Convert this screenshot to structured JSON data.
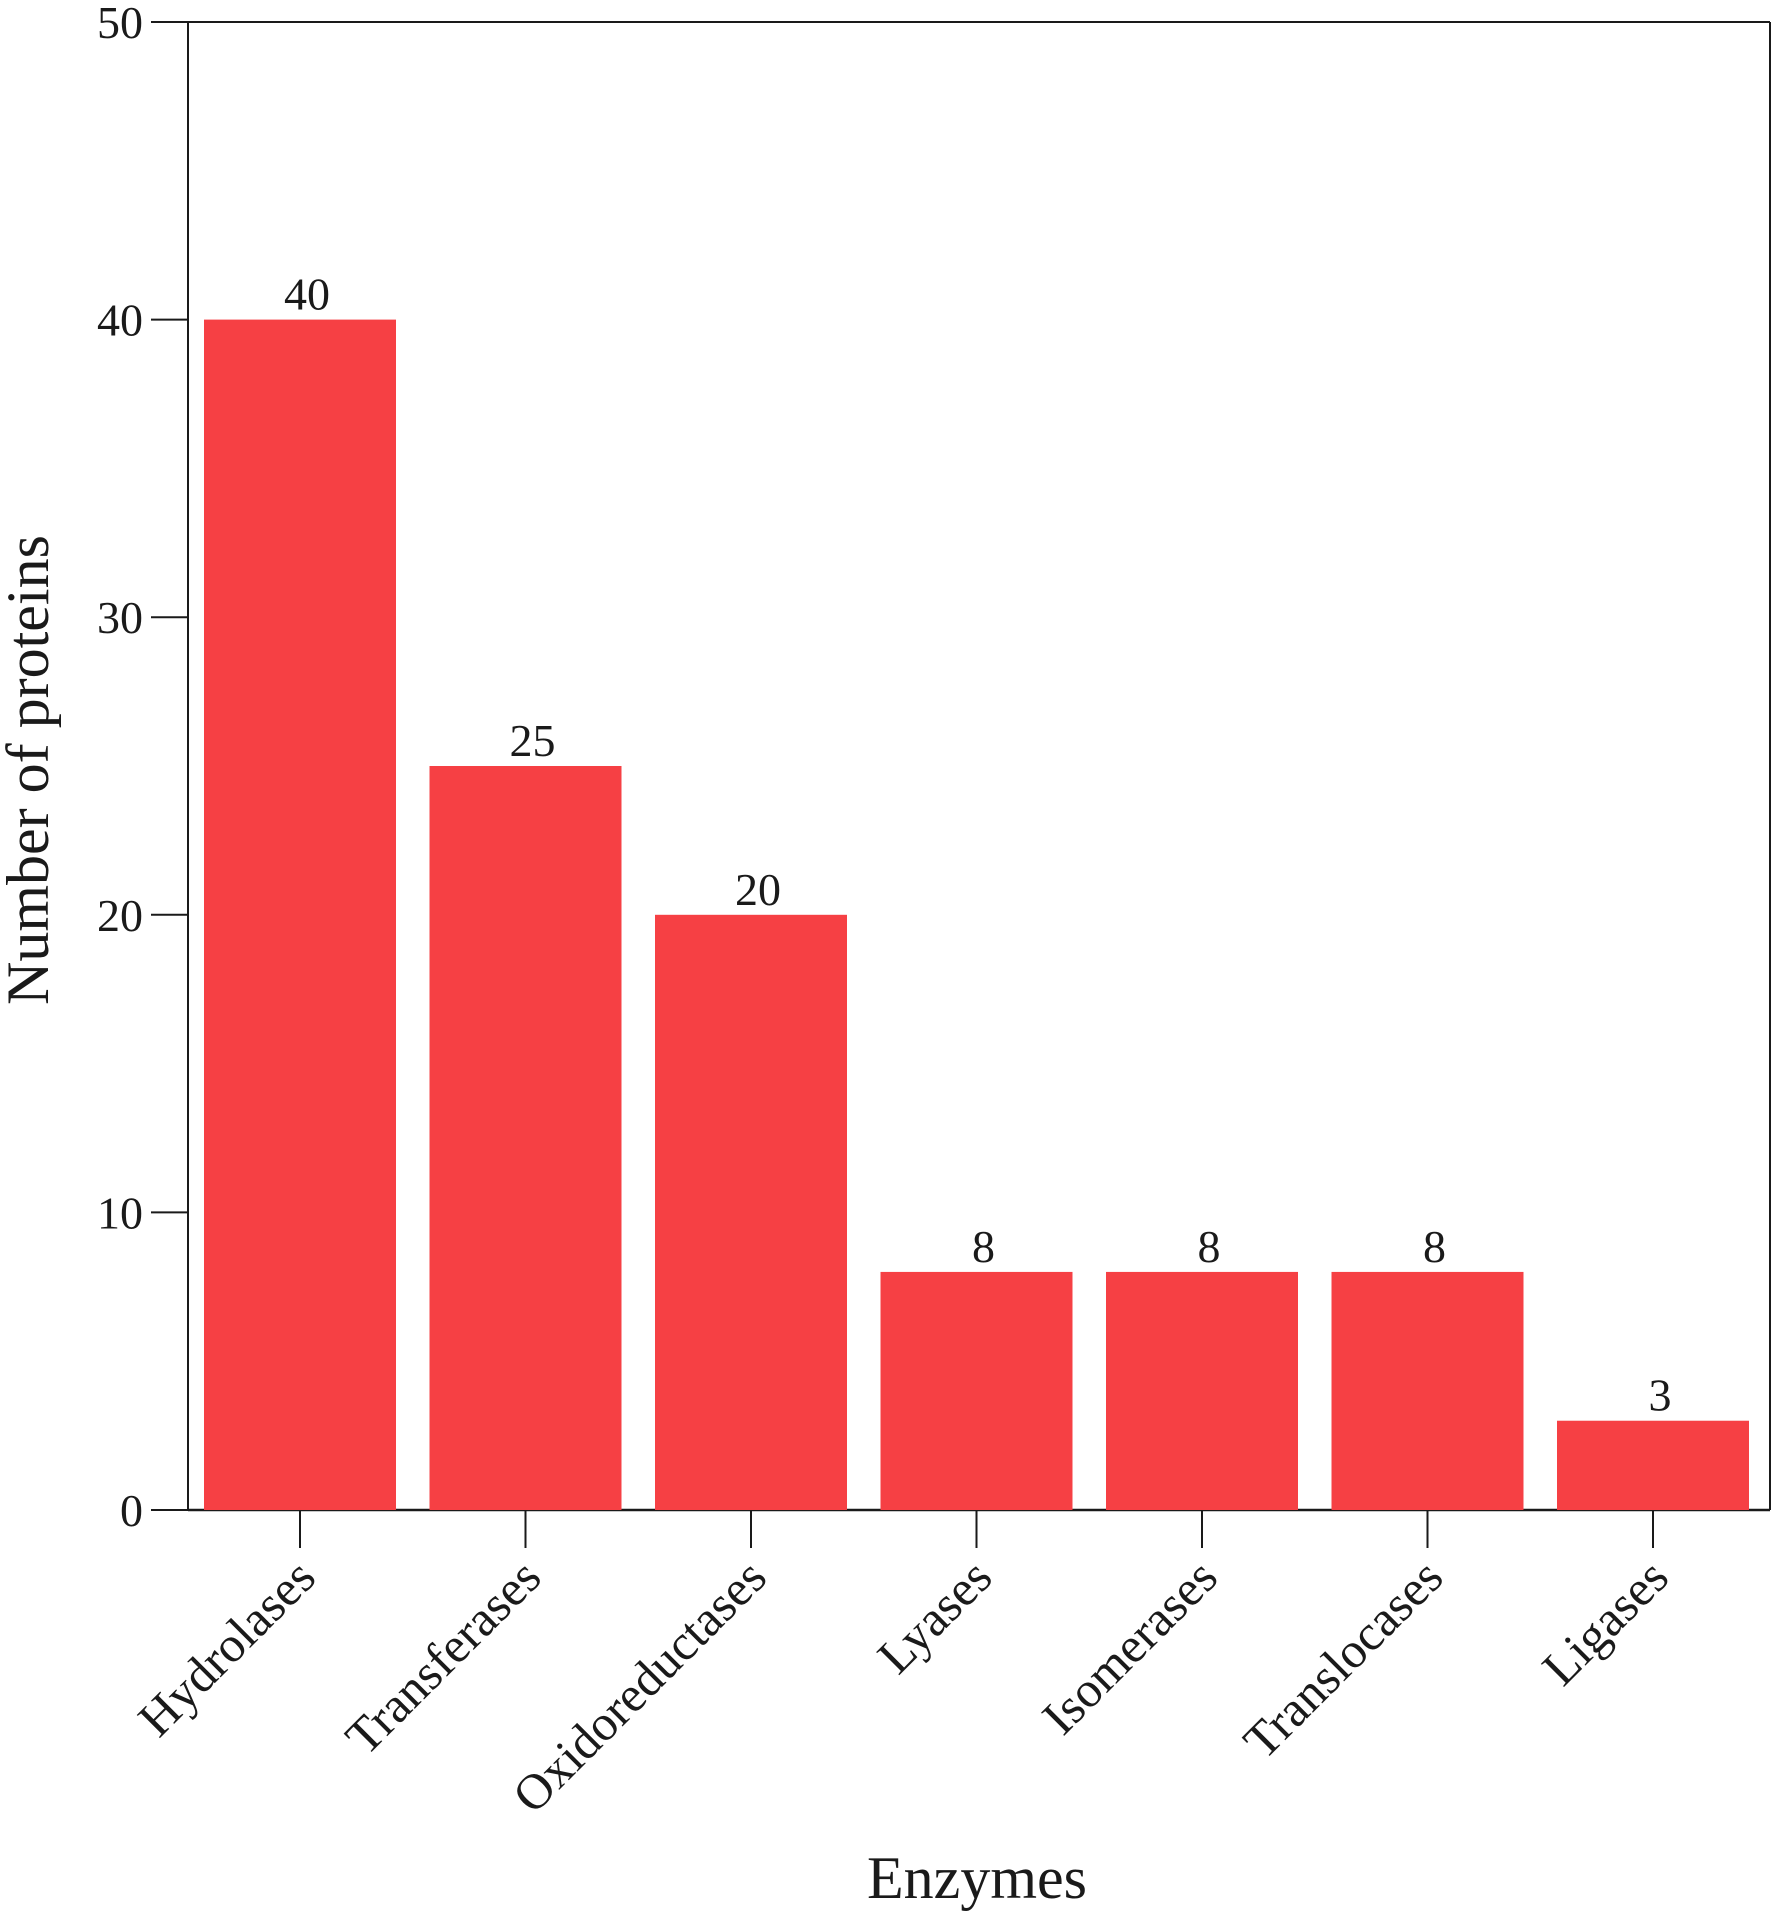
{
  "chart_data": {
    "type": "bar",
    "categories": [
      "Hydrolases",
      "Transferases",
      "Oxidoreductases",
      "Lyases",
      "Isomerases",
      "Translocases",
      "Ligases"
    ],
    "values": [
      40,
      25,
      20,
      8,
      8,
      8,
      3
    ],
    "data_labels": [
      "40",
      "25",
      "20",
      "8",
      "8",
      "8",
      "3"
    ],
    "title": "",
    "xlabel": "Enzymes",
    "ylabel": "Number of proteins",
    "ylim": [
      0,
      50
    ],
    "yticks": [
      0,
      10,
      20,
      30,
      40,
      50
    ],
    "ytick_labels": [
      "0",
      "10",
      "20",
      "30",
      "40",
      "50"
    ],
    "grid": false,
    "legend": "none",
    "bar_color": "#f64044",
    "axis_color": "#1a1a1a"
  }
}
